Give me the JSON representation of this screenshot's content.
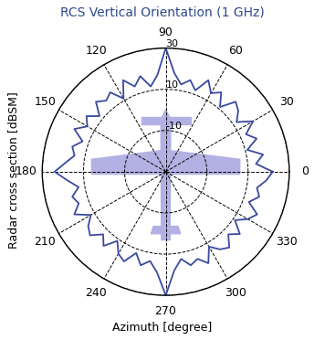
{
  "chart_data": {
    "type": "polar_line",
    "title": "RCS Vertical Orientation (1 GHz)",
    "x_label": "Azimuth [degree]",
    "y_label": "Radar cross section [dBSM]",
    "color": "#3a4aa0",
    "x": [
      0,
      5,
      10,
      15,
      20,
      25,
      30,
      35,
      40,
      45,
      50,
      55,
      60,
      65,
      70,
      75,
      80,
      85,
      90,
      95,
      100,
      105,
      110,
      115,
      120,
      125,
      130,
      135,
      140,
      145,
      150,
      155,
      160,
      165,
      170,
      175,
      180,
      185,
      190,
      195,
      200,
      205,
      210,
      215,
      220,
      225,
      230,
      235,
      240,
      245,
      250,
      255,
      260,
      265,
      270,
      275,
      280,
      285,
      290,
      295,
      300,
      305,
      310,
      315,
      320,
      325,
      330,
      335,
      340,
      345,
      350,
      355
    ],
    "values": [
      22,
      14,
      18,
      11,
      17,
      13,
      19,
      12,
      16,
      18,
      11,
      17,
      14,
      19,
      12,
      16,
      13,
      18,
      30,
      17,
      12,
      18,
      14,
      19,
      11,
      17,
      15,
      18,
      12,
      17,
      14,
      19,
      13,
      17,
      15,
      19,
      24,
      18,
      13,
      17,
      15,
      19,
      12,
      16,
      18,
      13,
      17,
      11,
      16,
      18,
      12,
      17,
      14,
      19,
      30,
      18,
      13,
      17,
      15,
      19,
      12,
      16,
      18,
      13,
      17,
      11,
      16,
      19,
      13,
      17,
      15,
      19
    ],
    "xlim": [
      0,
      360
    ],
    "xticks": [
      0,
      30,
      60,
      90,
      120,
      150,
      180,
      210,
      240,
      270,
      300,
      330
    ],
    "ylim": [
      -30,
      30
    ],
    "yticks": [
      -10,
      10,
      30
    ],
    "grid": true
  }
}
